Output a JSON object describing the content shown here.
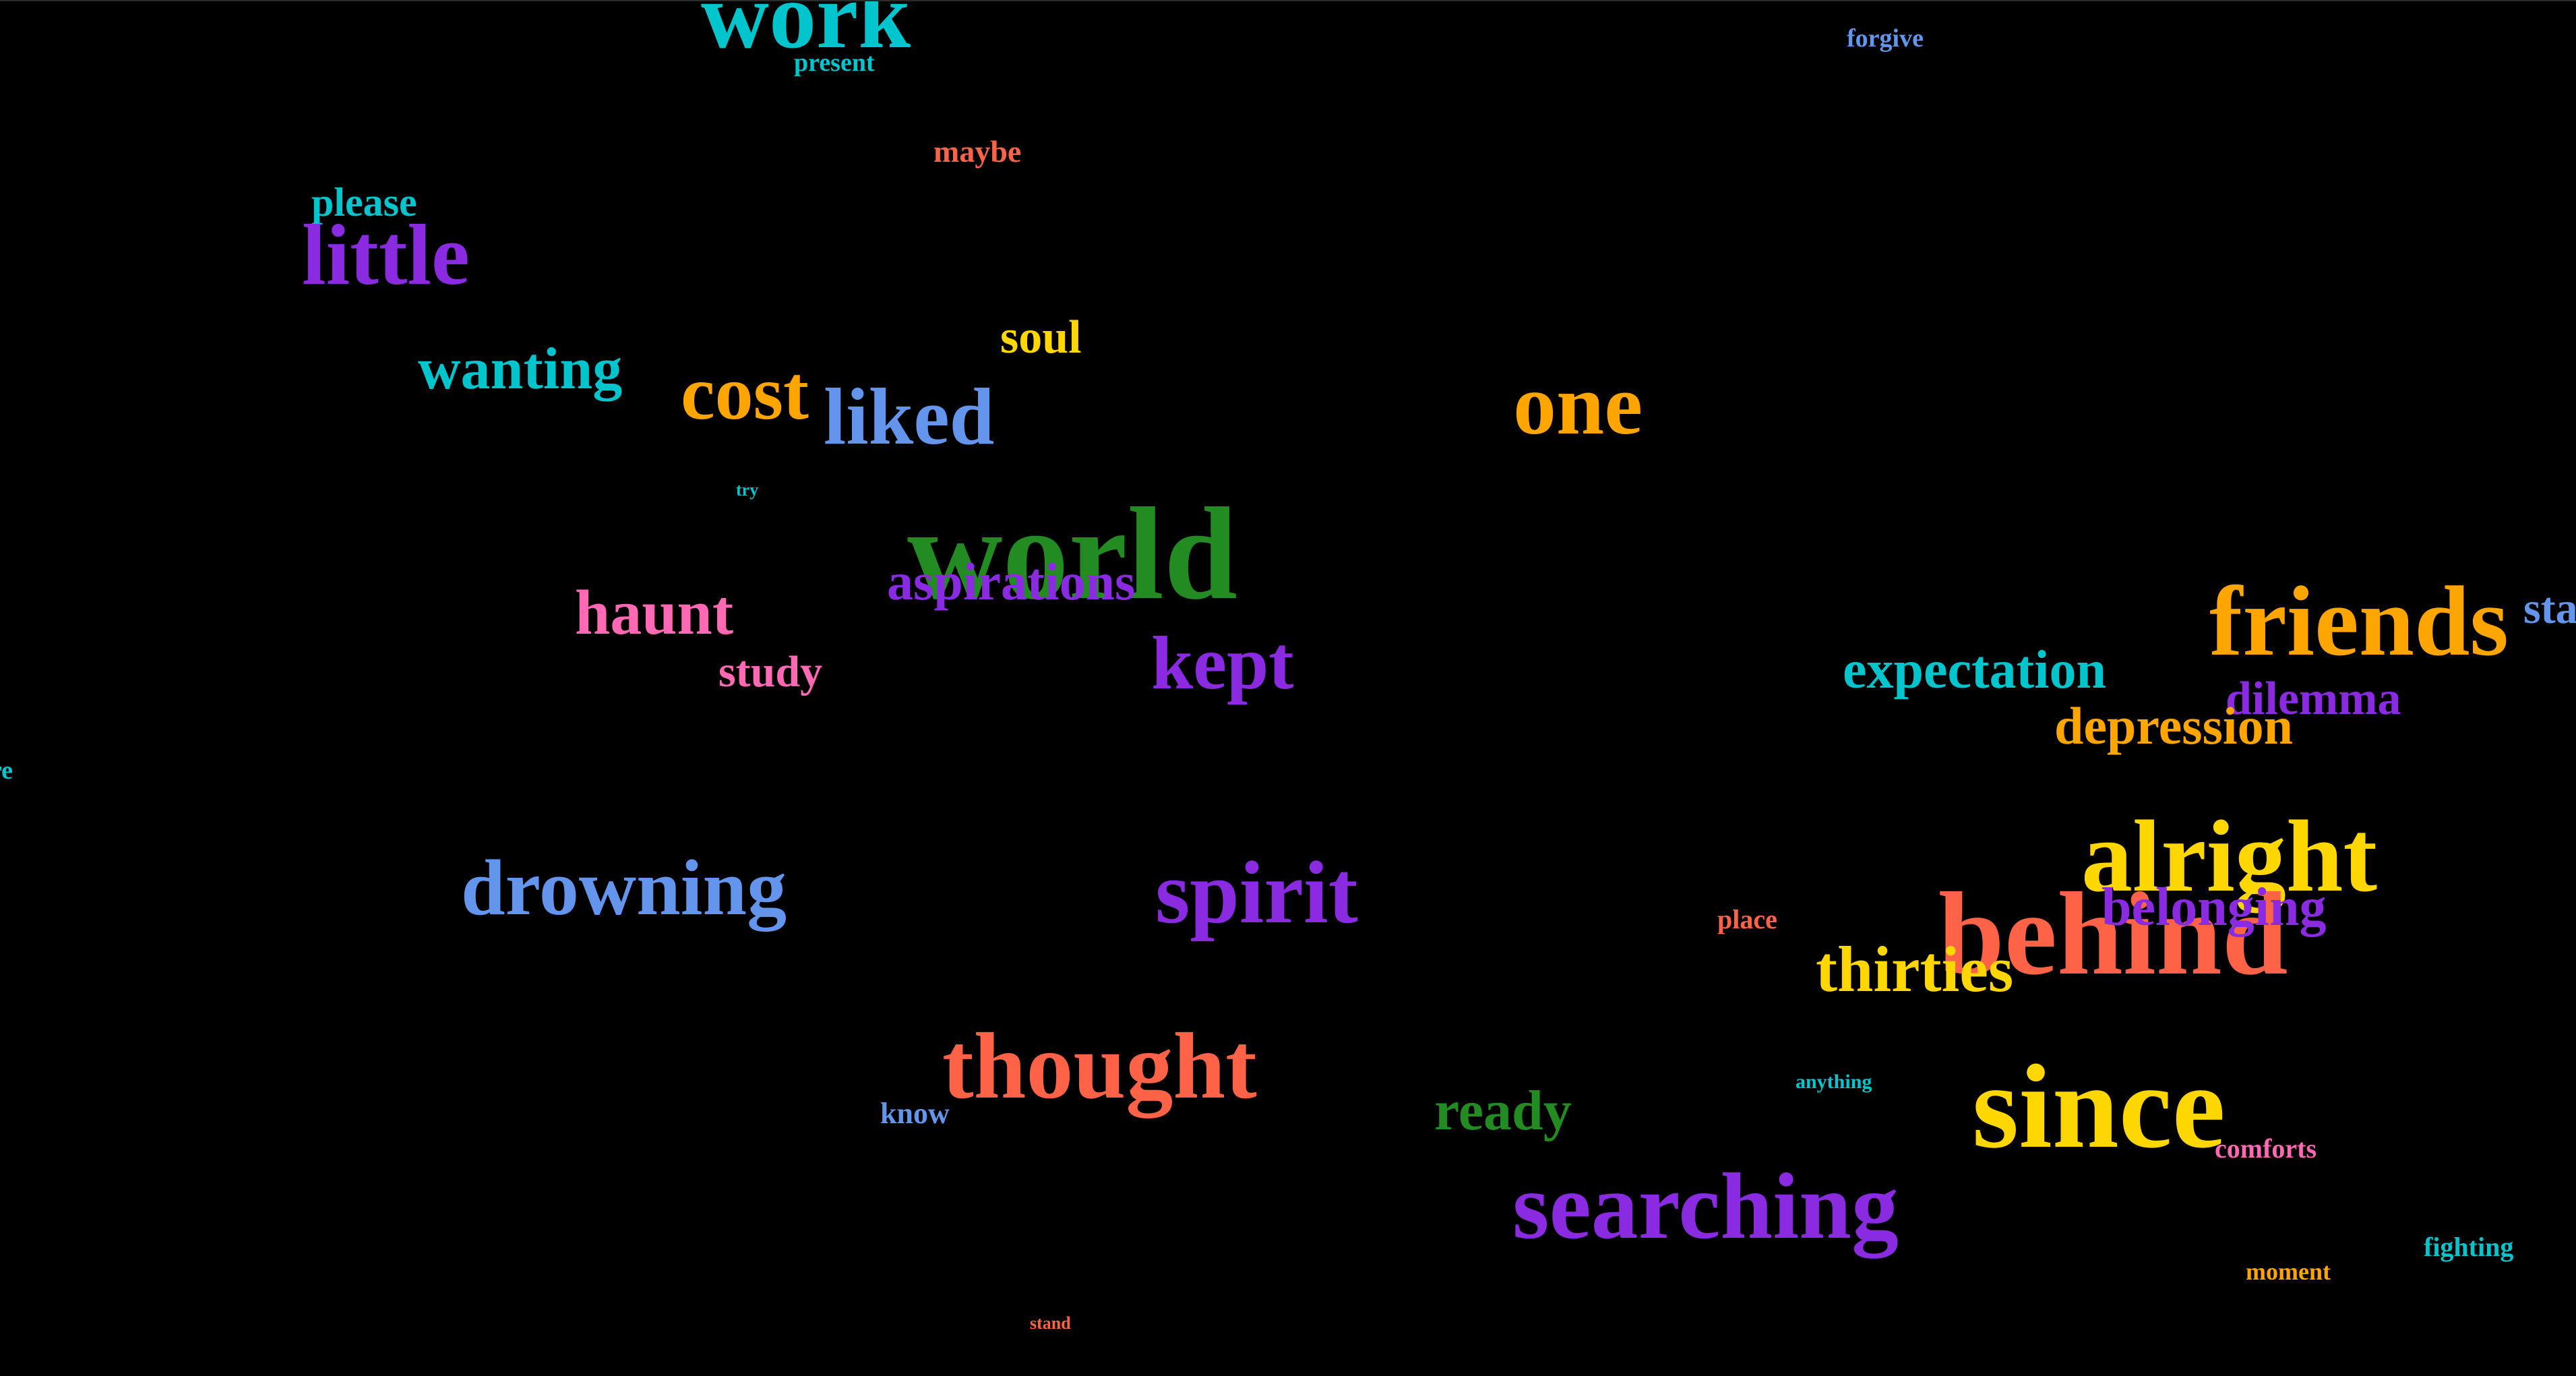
{
  "palette": {
    "background": "#000000",
    "cyan": "#00C5CD",
    "purple": "#8A2BE2",
    "orange": "#FFA500",
    "blue": "#6495ED",
    "green": "#228B22",
    "pink": "#FF69B4",
    "yellow": "#FFD700",
    "tomato": "#FF6347"
  },
  "words": [
    {
      "text": "work",
      "color": "#00C5CD"
    },
    {
      "text": "present",
      "color": "#00C5CD"
    },
    {
      "text": "forgive",
      "color": "#6495ED"
    },
    {
      "text": "maybe",
      "color": "#FF6347"
    },
    {
      "text": "please",
      "color": "#00C5CD"
    },
    {
      "text": "little",
      "color": "#8A2BE2"
    },
    {
      "text": "soul",
      "color": "#FFD700"
    },
    {
      "text": "wanting",
      "color": "#00C5CD"
    },
    {
      "text": "cost",
      "color": "#FFA500"
    },
    {
      "text": "liked",
      "color": "#6495ED"
    },
    {
      "text": "one",
      "color": "#FFA500"
    },
    {
      "text": "try",
      "color": "#00C5CD"
    },
    {
      "text": "world",
      "color": "#228B22"
    },
    {
      "text": "aspirations",
      "color": "#8A2BE2"
    },
    {
      "text": "haunt",
      "color": "#FF69B4"
    },
    {
      "text": "kept",
      "color": "#8A2BE2"
    },
    {
      "text": "study",
      "color": "#FF69B4"
    },
    {
      "text": "friends",
      "color": "#FFA500"
    },
    {
      "text": "sta",
      "color": "#6495ED"
    },
    {
      "text": "expectation",
      "color": "#00C5CD"
    },
    {
      "text": "dilemma",
      "color": "#8A2BE2"
    },
    {
      "text": "depression",
      "color": "#FFA500"
    },
    {
      "text": "re",
      "color": "#00C5CD"
    },
    {
      "text": "alright",
      "color": "#FFD700"
    },
    {
      "text": "drowning",
      "color": "#6495ED"
    },
    {
      "text": "spirit",
      "color": "#8A2BE2"
    },
    {
      "text": "behind",
      "color": "#FF6347"
    },
    {
      "text": "belonging",
      "color": "#8A2BE2"
    },
    {
      "text": "place",
      "color": "#FF6347"
    },
    {
      "text": "thirties",
      "color": "#FFD700"
    },
    {
      "text": "thought",
      "color": "#FF6347"
    },
    {
      "text": "know",
      "color": "#6495ED"
    },
    {
      "text": "ready",
      "color": "#228B22"
    },
    {
      "text": "anything",
      "color": "#00C5CD"
    },
    {
      "text": "since",
      "color": "#FFD700"
    },
    {
      "text": "comforts",
      "color": "#FF69B4"
    },
    {
      "text": "searching",
      "color": "#8A2BE2"
    },
    {
      "text": "fighting",
      "color": "#00C5CD"
    },
    {
      "text": "moment",
      "color": "#FFA500"
    },
    {
      "text": "stand",
      "color": "#FF6347"
    }
  ]
}
